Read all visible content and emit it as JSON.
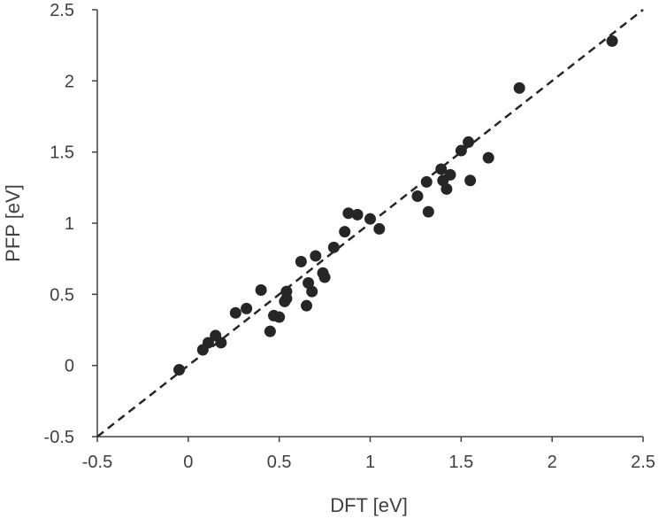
{
  "chart_data": {
    "type": "scatter",
    "xlabel": "DFT [eV]",
    "ylabel": "PFP [eV]",
    "xlim": [
      -0.5,
      2.5
    ],
    "ylim": [
      -0.5,
      2.5
    ],
    "x_ticks": [
      "-0.5",
      "0",
      "0.5",
      "1",
      "1.5",
      "2",
      "2.5"
    ],
    "y_ticks": [
      "-0.5",
      "0",
      "0.5",
      "1",
      "1.5",
      "2",
      "2.5"
    ],
    "grid": false,
    "reference_line": {
      "style": "dashed",
      "from": [
        -0.5,
        -0.5
      ],
      "to": [
        2.5,
        2.5
      ]
    },
    "marker_color": "#262626",
    "series": [
      {
        "points": [
          [
            -0.05,
            -0.03
          ],
          [
            0.08,
            0.11
          ],
          [
            0.11,
            0.16
          ],
          [
            0.15,
            0.21
          ],
          [
            0.18,
            0.16
          ],
          [
            0.26,
            0.37
          ],
          [
            0.32,
            0.4
          ],
          [
            0.4,
            0.53
          ],
          [
            0.45,
            0.24
          ],
          [
            0.47,
            0.35
          ],
          [
            0.5,
            0.34
          ],
          [
            0.53,
            0.45
          ],
          [
            0.54,
            0.47
          ],
          [
            0.54,
            0.52
          ],
          [
            0.62,
            0.73
          ],
          [
            0.65,
            0.42
          ],
          [
            0.66,
            0.58
          ],
          [
            0.68,
            0.52
          ],
          [
            0.7,
            0.77
          ],
          [
            0.74,
            0.65
          ],
          [
            0.75,
            0.62
          ],
          [
            0.8,
            0.83
          ],
          [
            0.86,
            0.94
          ],
          [
            0.88,
            1.07
          ],
          [
            0.93,
            1.06
          ],
          [
            1.0,
            1.03
          ],
          [
            1.05,
            0.96
          ],
          [
            1.26,
            1.19
          ],
          [
            1.31,
            1.29
          ],
          [
            1.32,
            1.08
          ],
          [
            1.39,
            1.38
          ],
          [
            1.4,
            1.3
          ],
          [
            1.42,
            1.24
          ],
          [
            1.44,
            1.34
          ],
          [
            1.5,
            1.51
          ],
          [
            1.54,
            1.57
          ],
          [
            1.55,
            1.3
          ],
          [
            1.65,
            1.46
          ],
          [
            1.82,
            1.95
          ],
          [
            2.33,
            2.28
          ]
        ]
      }
    ]
  }
}
